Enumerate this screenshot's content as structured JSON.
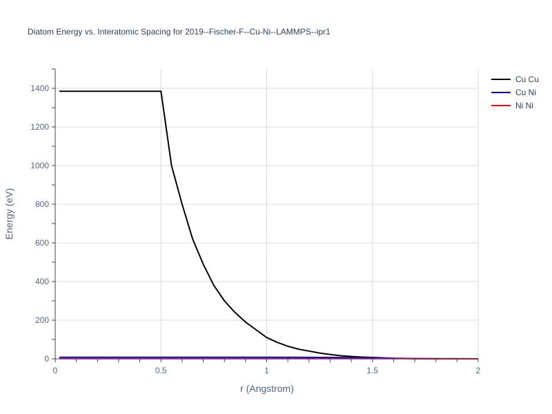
{
  "chart_data": {
    "type": "line",
    "title": "Diatom Energy vs. Interatomic Spacing for 2019--Fischer-F--Cu-Ni--LAMMPS--ipr1",
    "xlabel": "r (Angstrom)",
    "ylabel": "Energy (eV)",
    "xlim": [
      0,
      2
    ],
    "ylim": [
      0,
      1500
    ],
    "x_ticks": [
      0,
      0.5,
      1,
      1.5,
      2
    ],
    "x_tick_labels": [
      "0",
      "0.5",
      "1",
      "1.5",
      "2"
    ],
    "y_ticks": [
      0,
      200,
      400,
      600,
      800,
      1000,
      1200,
      1400
    ],
    "y_tick_labels": [
      "0",
      "200",
      "400",
      "600",
      "800",
      "1000",
      "1200",
      "1400"
    ],
    "grid": true,
    "legend_position": "top-right",
    "series": [
      {
        "name": "Cu Cu",
        "color": "#000000",
        "x": [
          0.02,
          0.5,
          0.55,
          0.6,
          0.65,
          0.7,
          0.75,
          0.8,
          0.85,
          0.9,
          0.95,
          1.0,
          1.05,
          1.1,
          1.15,
          1.2,
          1.25,
          1.3,
          1.35,
          1.4,
          1.45,
          1.5,
          1.55,
          1.6,
          1.65,
          1.7,
          1.75,
          1.8,
          1.85,
          1.9,
          1.95,
          2.0
        ],
        "y": [
          1385,
          1385,
          1000,
          800,
          620,
          490,
          380,
          300,
          240,
          190,
          150,
          110,
          85,
          65,
          50,
          40,
          30,
          22,
          16,
          12,
          9,
          7,
          5,
          3,
          2,
          1,
          0.5,
          0.3,
          0.1,
          0,
          0,
          0
        ]
      },
      {
        "name": "Cu Ni",
        "color": "#0000ff",
        "x": [
          0.02,
          0.5,
          1.0,
          1.3,
          1.5,
          1.6,
          1.7,
          1.8,
          1.9,
          2.0
        ],
        "y": [
          8,
          8,
          8,
          7,
          5,
          3,
          1,
          0.5,
          0.2,
          0
        ]
      },
      {
        "name": "Ni Ni",
        "color": "#ff0000",
        "x": [
          0.02,
          0.5,
          1.0,
          1.5,
          1.6,
          1.7,
          1.8,
          1.9,
          2.0
        ],
        "y": [
          1,
          1,
          1,
          1,
          1,
          1,
          0.5,
          0.2,
          0
        ]
      }
    ]
  }
}
